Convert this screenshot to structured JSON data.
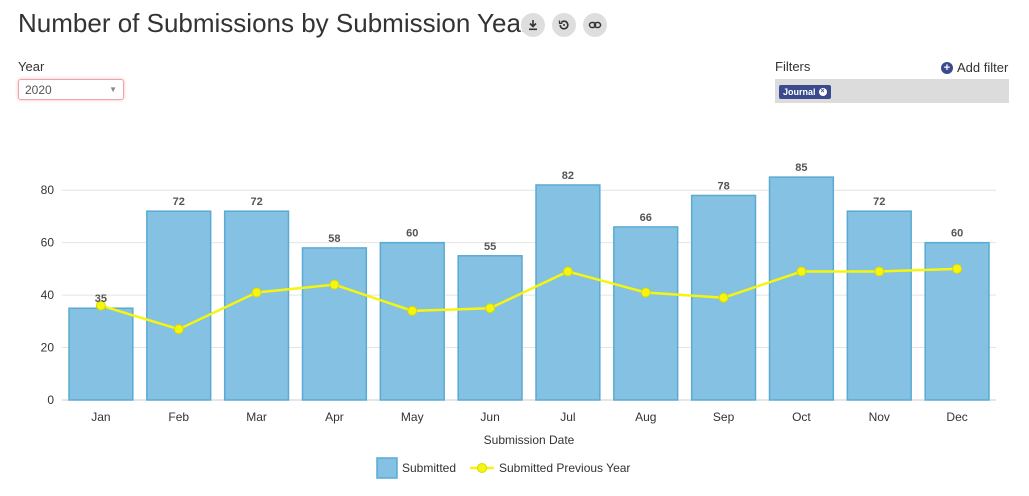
{
  "header": {
    "title": "Number of Submissions by Submission Year",
    "actions": [
      {
        "name": "download-icon"
      },
      {
        "name": "reset-icon"
      },
      {
        "name": "link-icon"
      }
    ]
  },
  "year_filter": {
    "label": "Year",
    "value": "2020"
  },
  "filters": {
    "label": "Filters",
    "add_label": "Add filter",
    "chips": [
      "Journal"
    ]
  },
  "colors": {
    "bar": "#85c1e2",
    "bar_border": "#5aaad3",
    "line": "#f5f50f",
    "chip": "#3b4a8c"
  },
  "chart_data": {
    "type": "bar",
    "categories": [
      "Jan",
      "Feb",
      "Mar",
      "Apr",
      "May",
      "Jun",
      "Jul",
      "Aug",
      "Sep",
      "Oct",
      "Nov",
      "Dec"
    ],
    "series": [
      {
        "name": "Submitted",
        "type": "bar",
        "values": [
          35,
          72,
          72,
          58,
          60,
          55,
          82,
          66,
          78,
          85,
          72,
          60
        ]
      },
      {
        "name": "Submitted Previous Year",
        "type": "line",
        "values": [
          36,
          27,
          41,
          44,
          34,
          35,
          49,
          41,
          39,
          49,
          49,
          50
        ]
      }
    ],
    "xlabel": "Submission Date",
    "ylabel": "",
    "ylim": [
      0,
      90
    ],
    "yticks": [
      0,
      20,
      40,
      60,
      80
    ],
    "grid": true,
    "legend": "bottom-center"
  }
}
